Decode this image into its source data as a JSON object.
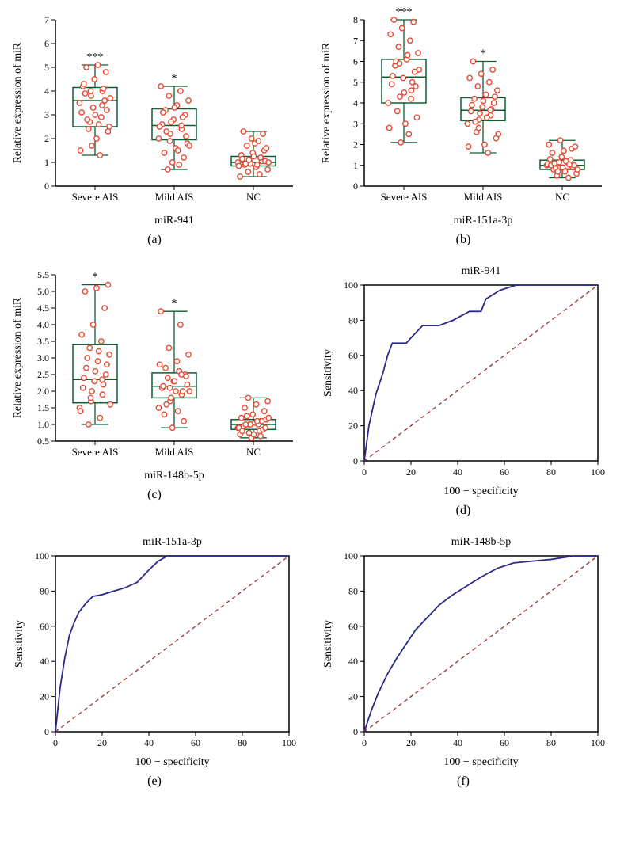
{
  "colors": {
    "axis": "#000000",
    "box_stroke": "#0d5f33",
    "marker_fill": "#ffffff",
    "marker_stroke": "#e34a33",
    "roc_line": "#2a2a8a",
    "diag_line": "#9e3030",
    "text": "#000000",
    "bg": "#ffffff"
  },
  "fonts": {
    "axis_label_pt": 14,
    "tick_pt": 12,
    "title_pt": 14,
    "sublabel_pt": 16
  },
  "panels": {
    "a": {
      "type": "boxplot_scatter",
      "sublabel": "(a)",
      "ylabel": "Relative expression of miR",
      "xlabel": "miR-941",
      "ylim": [
        0,
        7
      ],
      "ytick_step": 1,
      "categories": [
        "Severe AIS",
        "Mild AIS",
        "NC"
      ],
      "sig_labels": [
        "***",
        "*",
        ""
      ],
      "boxes": [
        {
          "min": 1.3,
          "q1": 2.5,
          "med": 3.6,
          "q3": 4.15,
          "max": 5.1
        },
        {
          "min": 0.7,
          "q1": 1.95,
          "med": 2.55,
          "q3": 3.25,
          "max": 4.2
        },
        {
          "min": 0.4,
          "q1": 0.85,
          "med": 1.0,
          "q3": 1.25,
          "max": 2.3
        }
      ],
      "points": [
        [
          3.5,
          3.8,
          4.0,
          4.2,
          4.5,
          4.8,
          5.0,
          5.1,
          2.5,
          2.7,
          2.9,
          3.1,
          3.3,
          3.6,
          3.9,
          2.0,
          2.3,
          2.4,
          1.3,
          1.5,
          1.7,
          4.1,
          4.3,
          3.0,
          3.2,
          2.8,
          2.6,
          3.7,
          4.0,
          3.4
        ],
        [
          2.0,
          2.2,
          2.4,
          2.6,
          2.8,
          3.0,
          3.2,
          3.4,
          3.6,
          3.8,
          4.0,
          4.2,
          1.0,
          1.2,
          1.4,
          1.6,
          1.8,
          0.7,
          0.9,
          2.5,
          2.7,
          2.9,
          3.1,
          3.3,
          2.1,
          2.3,
          1.5,
          1.7,
          1.9,
          2.55
        ],
        [
          1.0,
          1.1,
          1.2,
          1.3,
          1.4,
          1.5,
          0.9,
          0.8,
          0.7,
          0.6,
          0.5,
          0.4,
          2.0,
          2.2,
          2.3,
          1.8,
          1.6,
          1.7,
          1.9,
          0.85,
          0.95,
          1.05,
          1.15,
          1.25,
          1.05,
          0.95,
          0.9,
          1.0,
          1.1,
          1.2
        ]
      ]
    },
    "b": {
      "type": "boxplot_scatter",
      "sublabel": "(b)",
      "ylabel": "Relative expression of miR",
      "xlabel": "miR-151a-3p",
      "ylim": [
        0,
        8
      ],
      "ytick_step": 1,
      "categories": [
        "Severe AIS",
        "Mild AIS",
        "NC"
      ],
      "sig_labels": [
        "***",
        "*",
        ""
      ],
      "boxes": [
        {
          "min": 2.1,
          "q1": 4.0,
          "med": 5.25,
          "q3": 6.1,
          "max": 8.0
        },
        {
          "min": 1.6,
          "q1": 3.15,
          "med": 3.65,
          "q3": 4.25,
          "max": 6.0
        },
        {
          "min": 0.4,
          "q1": 0.8,
          "med": 1.0,
          "q3": 1.25,
          "max": 2.2
        }
      ],
      "points": [
        [
          4.0,
          4.3,
          4.6,
          4.9,
          5.2,
          5.5,
          5.8,
          6.1,
          6.4,
          6.7,
          7.0,
          7.3,
          7.6,
          7.9,
          8.0,
          3.0,
          3.3,
          3.6,
          2.5,
          2.8,
          2.1,
          5.0,
          5.3,
          4.5,
          4.8,
          6.0,
          6.3,
          5.6,
          5.9,
          4.2
        ],
        [
          3.0,
          3.2,
          3.4,
          3.6,
          3.8,
          4.0,
          4.2,
          4.4,
          4.6,
          4.8,
          5.0,
          5.2,
          5.4,
          5.6,
          6.0,
          2.0,
          2.3,
          2.6,
          1.6,
          1.9,
          3.5,
          3.7,
          3.9,
          4.1,
          4.3,
          3.1,
          3.3,
          2.5,
          2.8,
          3.65
        ],
        [
          1.0,
          1.1,
          1.2,
          1.3,
          1.4,
          0.9,
          0.8,
          0.7,
          0.6,
          0.5,
          0.4,
          2.0,
          2.2,
          1.8,
          1.6,
          1.7,
          1.9,
          0.85,
          0.95,
          1.05,
          1.15,
          1.25,
          1.0,
          0.9,
          1.0,
          1.1,
          1.2,
          0.8,
          0.7,
          1.05
        ]
      ]
    },
    "c": {
      "type": "boxplot_scatter",
      "sublabel": "(c)",
      "ylabel": "Relative expression of miR",
      "xlabel": "miR-148b-5p",
      "ylim": [
        0.5,
        5.5
      ],
      "ytick_step": 0.5,
      "categories": [
        "Severe AIS",
        "Mild AIS",
        "NC"
      ],
      "sig_labels": [
        "*",
        "*",
        ""
      ],
      "boxes": [
        {
          "min": 1.0,
          "q1": 1.65,
          "med": 2.35,
          "q3": 3.4,
          "max": 5.2
        },
        {
          "min": 0.9,
          "q1": 1.8,
          "med": 2.15,
          "q3": 2.55,
          "max": 4.4
        },
        {
          "min": 0.6,
          "q1": 0.85,
          "med": 1.0,
          "q3": 1.15,
          "max": 1.8
        }
      ],
      "points": [
        [
          1.5,
          1.7,
          1.9,
          2.1,
          2.3,
          2.5,
          2.7,
          2.9,
          3.1,
          3.3,
          3.5,
          3.7,
          4.0,
          4.5,
          5.0,
          5.1,
          5.2,
          1.0,
          1.2,
          1.4,
          2.0,
          2.2,
          2.4,
          2.6,
          2.8,
          3.0,
          3.2,
          1.6,
          1.8,
          2.35
        ],
        [
          1.5,
          1.7,
          1.9,
          2.1,
          2.3,
          2.5,
          2.7,
          2.9,
          3.1,
          3.3,
          4.0,
          4.4,
          0.9,
          1.1,
          1.3,
          2.0,
          2.2,
          2.4,
          2.6,
          2.8,
          1.8,
          2.0,
          2.15,
          2.3,
          2.45,
          1.6,
          1.4,
          2.0,
          2.1,
          2.5
        ],
        [
          0.9,
          1.0,
          1.1,
          1.2,
          1.3,
          1.4,
          1.5,
          1.6,
          1.7,
          1.8,
          0.8,
          0.7,
          0.6,
          0.85,
          0.95,
          1.05,
          1.15,
          1.25,
          1.0,
          0.9,
          1.0,
          1.1,
          0.8,
          0.7,
          0.9,
          1.0,
          1.1,
          1.2,
          0.75,
          0.65
        ]
      ]
    },
    "d": {
      "type": "roc",
      "sublabel": "(d)",
      "title": "miR-941",
      "xlabel": "100 − specificity",
      "ylabel": "Sensitivity",
      "xlim": [
        0,
        100
      ],
      "ylim": [
        0,
        100
      ],
      "xtick_step": 20,
      "ytick_step": 20,
      "curve": [
        [
          0,
          0
        ],
        [
          2,
          20
        ],
        [
          5,
          38
        ],
        [
          8,
          50
        ],
        [
          10,
          60
        ],
        [
          12,
          67
        ],
        [
          18,
          67
        ],
        [
          20,
          70
        ],
        [
          25,
          77
        ],
        [
          32,
          77
        ],
        [
          38,
          80
        ],
        [
          45,
          85
        ],
        [
          50,
          85
        ],
        [
          52,
          92
        ],
        [
          58,
          97
        ],
        [
          65,
          100
        ],
        [
          100,
          100
        ]
      ]
    },
    "e": {
      "type": "roc",
      "sublabel": "(e)",
      "title": "miR-151a-3p",
      "xlabel": "100 − specificity",
      "ylabel": "Sensitivity",
      "xlim": [
        0,
        100
      ],
      "ylim": [
        0,
        100
      ],
      "xtick_step": 20,
      "ytick_step": 20,
      "curve": [
        [
          0,
          0
        ],
        [
          2,
          25
        ],
        [
          4,
          42
        ],
        [
          6,
          55
        ],
        [
          8,
          62
        ],
        [
          10,
          68
        ],
        [
          13,
          73
        ],
        [
          16,
          77
        ],
        [
          20,
          78
        ],
        [
          25,
          80
        ],
        [
          30,
          82
        ],
        [
          35,
          85
        ],
        [
          40,
          92
        ],
        [
          44,
          97
        ],
        [
          48,
          100
        ],
        [
          100,
          100
        ]
      ]
    },
    "f": {
      "type": "roc",
      "sublabel": "(f)",
      "title": "miR-148b-5p",
      "xlabel": "100 − specificity",
      "ylabel": "Sensitivity",
      "xlim": [
        0,
        100
      ],
      "ylim": [
        0,
        100
      ],
      "xtick_step": 20,
      "ytick_step": 20,
      "curve": [
        [
          0,
          0
        ],
        [
          3,
          12
        ],
        [
          6,
          22
        ],
        [
          10,
          33
        ],
        [
          14,
          42
        ],
        [
          18,
          50
        ],
        [
          22,
          58
        ],
        [
          27,
          65
        ],
        [
          32,
          72
        ],
        [
          38,
          78
        ],
        [
          44,
          83
        ],
        [
          50,
          88
        ],
        [
          57,
          93
        ],
        [
          64,
          96
        ],
        [
          72,
          97
        ],
        [
          80,
          98
        ],
        [
          90,
          100
        ],
        [
          100,
          100
        ]
      ]
    }
  }
}
